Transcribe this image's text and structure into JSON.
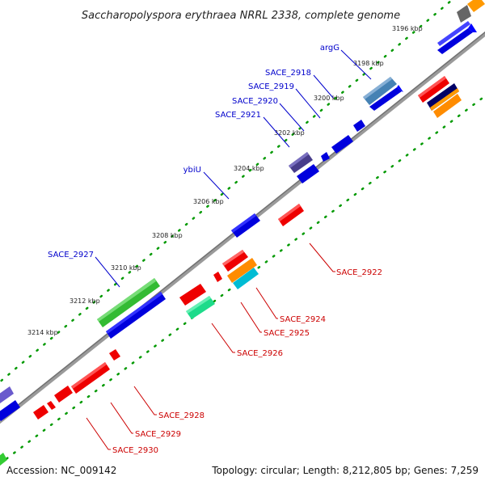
{
  "title": "Saccharopolyspora erythraea NRRL 2338, complete genome",
  "footer": {
    "accession": "Accession: NC_009142",
    "summary": "Topology: circular; Length: 8,212,805 bp; Genes: 7,259"
  },
  "ticks": [
    "3196 kbp",
    "3198 kbp",
    "3200 kbp",
    "3202 kbp",
    "3204 kbp",
    "3206 kbp",
    "3208 kbp",
    "3210 kbp",
    "3212 kbp",
    "3214 kbp"
  ],
  "forward_labels": [
    "argG",
    "SACE_2918",
    "SACE_2919",
    "SACE_2920",
    "SACE_2921",
    "ybiU",
    "SACE_2927"
  ],
  "reverse_labels": [
    "SACE_2922",
    "SACE_2924",
    "SACE_2925",
    "SACE_2926",
    "SACE_2928",
    "SACE_2929",
    "SACE_2930"
  ],
  "colors": {
    "backbone": "#8c8c8c",
    "forward_gene": "#0000ee",
    "reverse_gene": "#ee0000",
    "forward_label": "#0000cc",
    "reverse_label": "#cc0000",
    "tick_dots": "#008800"
  }
}
